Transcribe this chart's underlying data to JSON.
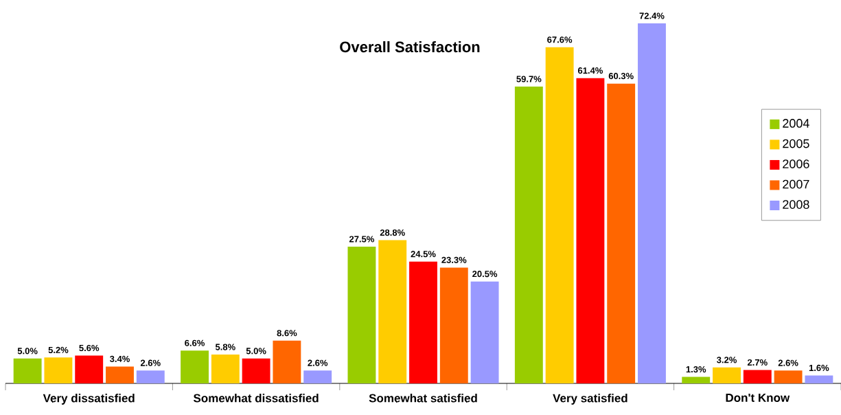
{
  "chart_data": {
    "type": "bar",
    "title": "Overall Satisfaction",
    "categories": [
      "Very dissatisfied",
      "Somewhat dissatisfied",
      "Somewhat satisfied",
      "Very satisfied",
      "Don't Know"
    ],
    "legend": "right",
    "series": [
      {
        "name": "2004",
        "color": "#99cc00",
        "values": [
          5.0,
          6.6,
          27.5,
          59.7,
          1.3
        ],
        "value_labels": [
          "5.0%",
          "6.6%",
          "27.5%",
          "59.7%",
          "1.3%"
        ]
      },
      {
        "name": "2005",
        "color": "#ffcc00",
        "values": [
          5.2,
          5.8,
          28.8,
          67.6,
          3.2
        ],
        "value_labels": [
          "5.2%",
          "5.8%",
          "28.8%",
          "67.6%",
          "3.2%"
        ]
      },
      {
        "name": "2006",
        "color": "#ff0000",
        "values": [
          5.6,
          5.0,
          24.5,
          61.4,
          2.7
        ],
        "value_labels": [
          "5.6%",
          "5.0%",
          "24.5%",
          "61.4%",
          "2.7%"
        ]
      },
      {
        "name": "2007",
        "color": "#ff6600",
        "values": [
          3.4,
          8.6,
          23.3,
          60.3,
          2.6
        ],
        "value_labels": [
          "3.4%",
          "8.6%",
          "23.3%",
          "60.3%",
          "2.6%"
        ]
      },
      {
        "name": "2008",
        "color": "#9999ff",
        "values": [
          2.6,
          2.6,
          20.5,
          72.4,
          1.6
        ],
        "value_labels": [
          "2.6%",
          "2.6%",
          "20.5%",
          "72.4%",
          "1.6%"
        ]
      }
    ]
  }
}
